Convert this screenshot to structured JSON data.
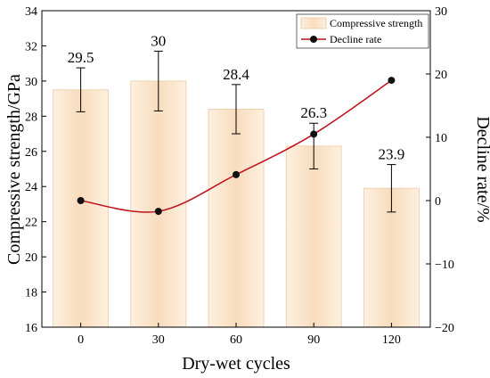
{
  "chart_data": {
    "type": "bar",
    "categories": [
      "0",
      "30",
      "60",
      "90",
      "120"
    ],
    "series": [
      {
        "name": "Compressive strength",
        "type": "bar",
        "axis": "left",
        "values": [
          29.5,
          30.0,
          28.4,
          26.3,
          23.9
        ],
        "value_labels": [
          "29.5",
          "30",
          "28.4",
          "26.3",
          "23.9"
        ],
        "error": [
          1.25,
          1.7,
          1.4,
          1.3,
          1.35
        ],
        "color": "#fbe6cf"
      },
      {
        "name": "Decline rate",
        "type": "line",
        "axis": "right",
        "values": [
          0,
          -1.7,
          4.1,
          10.5,
          19.0
        ],
        "color": "#c0101a",
        "marker_color": "#000000"
      }
    ],
    "xlabel": "Dry-wet cycles",
    "ylabel": "Compressive strength/GPa",
    "y2label": "Decline rate/%",
    "ylim": [
      16,
      34
    ],
    "y2lim": [
      -20,
      30
    ],
    "yticks": [
      "16",
      "18",
      "20",
      "22",
      "24",
      "26",
      "28",
      "30",
      "32",
      "34"
    ],
    "y2ticks": [
      "−20",
      "−10",
      "0",
      "10",
      "20",
      "30"
    ],
    "legend_position": "top-right",
    "grid": false
  }
}
